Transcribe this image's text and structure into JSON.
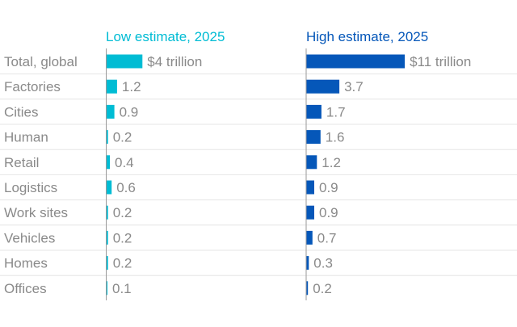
{
  "chart_data": {
    "type": "bar",
    "orientation": "horizontal",
    "categories": [
      "Total, global",
      "Factories",
      "Cities",
      "Human",
      "Retail",
      "Logistics",
      "Work sites",
      "Vehicles",
      "Homes",
      "Offices"
    ],
    "series": [
      {
        "name": "Low estimate, 2025",
        "color": "#00bcd4",
        "values": [
          4,
          1.2,
          0.9,
          0.2,
          0.4,
          0.6,
          0.2,
          0.2,
          0.2,
          0.1
        ],
        "labels": [
          "$4 trillion",
          "1.2",
          "0.9",
          "0.2",
          "0.4",
          "0.6",
          "0.2",
          "0.2",
          "0.2",
          "0.1"
        ]
      },
      {
        "name": "High estimate, 2025",
        "color": "#0557b9",
        "values": [
          11,
          3.7,
          1.7,
          1.6,
          1.2,
          0.9,
          0.9,
          0.7,
          0.3,
          0.2
        ],
        "labels": [
          "$11 trillion",
          "3.7",
          "1.7",
          "1.6",
          "1.2",
          "0.9",
          "0.9",
          "0.7",
          "0.3",
          "0.2"
        ]
      }
    ],
    "grid": true,
    "text_color": "#8a8a8a",
    "grid_color": "#e6e6e6",
    "axis_color": "#9a9a9a"
  }
}
